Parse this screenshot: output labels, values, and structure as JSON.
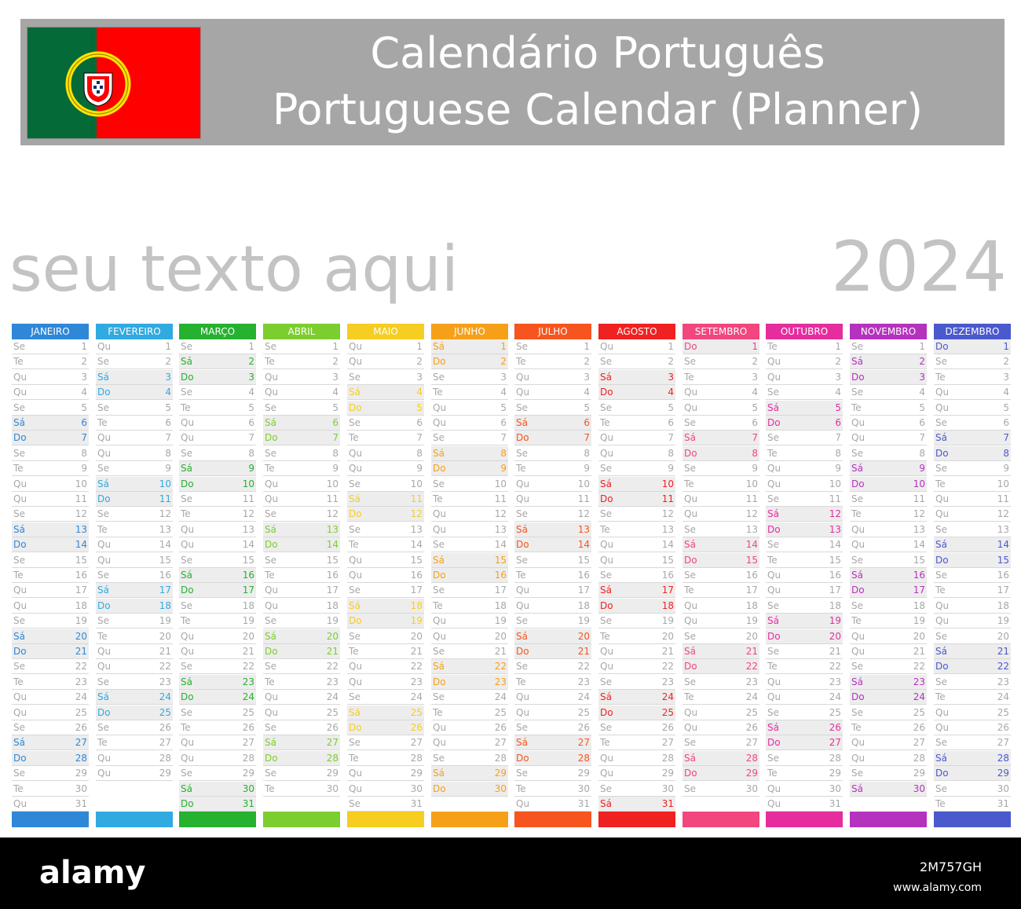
{
  "header": {
    "title_pt": "Calendário Português",
    "title_en": "Portuguese Calendar (Planner)"
  },
  "placeholder_text": "seu texto aqui",
  "year": "2024",
  "icons": {
    "flag": "portugal-flag-icon"
  },
  "months": [
    {
      "name": "JANEIRO",
      "color": "#2f87d8",
      "start": 1,
      "days": 31
    },
    {
      "name": "FEVEREIRO",
      "color": "#31a9e1",
      "start": 4,
      "days": 29
    },
    {
      "name": "MARÇO",
      "color": "#26b130",
      "start": 5,
      "days": 31
    },
    {
      "name": "ABRIL",
      "color": "#7cce2e",
      "start": 1,
      "days": 30
    },
    {
      "name": "MAIO",
      "color": "#f6cd21",
      "start": 3,
      "days": 31
    },
    {
      "name": "JUNHO",
      "color": "#f6a019",
      "start": 6,
      "days": 30
    },
    {
      "name": "JULHO",
      "color": "#f6551f",
      "start": 1,
      "days": 31
    },
    {
      "name": "AGOSTO",
      "color": "#f02121",
      "start": 4,
      "days": 31
    },
    {
      "name": "SETEMBRO",
      "color": "#f1467e",
      "start": 0,
      "days": 30
    },
    {
      "name": "OUTUBRO",
      "color": "#e52d9d",
      "start": 2,
      "days": 31
    },
    {
      "name": "NOVEMBRO",
      "color": "#b532be",
      "start": 5,
      "days": 30
    },
    {
      "name": "DEZEMBRO",
      "color": "#4a59cc",
      "start": 0,
      "days": 31
    }
  ],
  "weekday_abbr": [
    "Do",
    "Se",
    "Te",
    "Qu",
    "Qu",
    "Se",
    "Sá"
  ],
  "footer": {
    "logo": "alamy",
    "image_id": "2M757GH",
    "url": "www.alamy.com"
  }
}
